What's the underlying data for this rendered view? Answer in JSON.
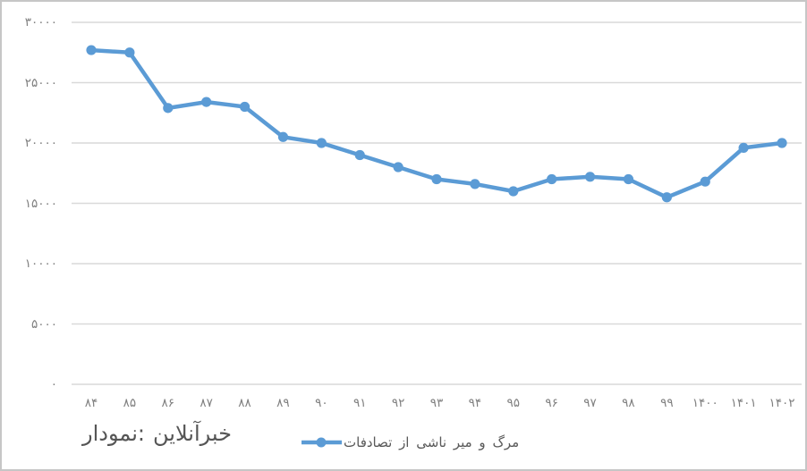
{
  "chart_data": {
    "type": "line",
    "title": "",
    "xlabel": "",
    "ylabel": "",
    "categories": [
      "۸۴",
      "۸۵",
      "۸۶",
      "۸۷",
      "۸۸",
      "۸۹",
      "۹۰",
      "۹۱",
      "۹۲",
      "۹۳",
      "۹۴",
      "۹۵",
      "۹۶",
      "۹۷",
      "۹۸",
      "۹۹",
      "۱۴۰۰",
      "۱۴۰۱",
      "۱۴۰۲"
    ],
    "categories_western_years": [
      1384,
      1385,
      1386,
      1387,
      1388,
      1389,
      1390,
      1391,
      1392,
      1393,
      1394,
      1395,
      1396,
      1397,
      1398,
      1399,
      1400,
      1401,
      1402
    ],
    "series": [
      {
        "name": "مرگ و میر ناشی از تصادفات",
        "values": [
          27700,
          27500,
          22900,
          23400,
          23000,
          20500,
          20000,
          19000,
          18000,
          17000,
          16600,
          16000,
          17000,
          17200,
          17000,
          15500,
          16800,
          19600,
          20000
        ]
      }
    ],
    "ylim": [
      0,
      30000
    ],
    "yticks": [
      0,
      5000,
      10000,
      15000,
      20000,
      25000,
      30000
    ],
    "ytick_labels": [
      "۰",
      "۵۰۰۰",
      "۱۰۰۰۰",
      "۱۵۰۰۰",
      "۲۰۰۰۰",
      "۲۵۰۰۰",
      "۳۰۰۰۰"
    ],
    "grid": "horizontal",
    "legend_position": "bottom-center",
    "line_color": "#5B9BD5",
    "marker": "circle",
    "grid_color": "#D9D9D9",
    "tick_text_color": "#808080"
  },
  "legend": {
    "label": "مرگ و میر ناشی از تصادفات"
  },
  "caption": {
    "part1": "نمودار:",
    "part2": "خبرآنلاین"
  }
}
